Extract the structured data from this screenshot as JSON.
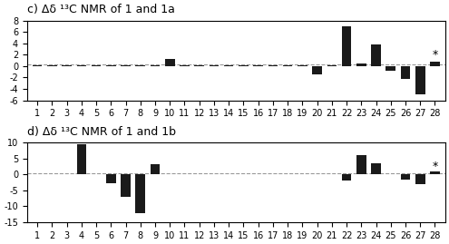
{
  "chart_data": [
    {
      "type": "bar",
      "title": "c) Δδ ¹³C NMR of 1 and 1a",
      "categories": [
        "1",
        "2",
        "3",
        "4",
        "5",
        "6",
        "7",
        "8",
        "9",
        "10",
        "11",
        "12",
        "13",
        "14",
        "15",
        "16",
        "17",
        "18",
        "19",
        "20",
        "21",
        "22",
        "23",
        "24",
        "25",
        "26",
        "27",
        "28"
      ],
      "values": [
        0.2,
        0.2,
        0.2,
        0.2,
        0.2,
        0.2,
        0.2,
        0.2,
        0.2,
        1.3,
        0.2,
        0.2,
        0.2,
        0.2,
        0.2,
        0.2,
        0.2,
        0.2,
        0.2,
        -1.5,
        0.2,
        7.0,
        0.4,
        3.8,
        -0.8,
        -2.3,
        -5.0,
        0.8
      ],
      "color": "#1a1a1a",
      "ylim": [
        -6,
        8
      ],
      "yticks": [
        -6,
        -4,
        -2,
        0,
        2,
        4,
        6,
        8
      ],
      "reference_line": {
        "y": 0.3,
        "color": "#999999",
        "line_style": "dashed"
      },
      "annotations": [
        {
          "text": "*",
          "category": "28",
          "y": 0.9
        }
      ]
    },
    {
      "type": "bar",
      "title": "d) Δδ ¹³C NMR of 1 and 1b",
      "categories": [
        "1",
        "2",
        "3",
        "4",
        "5",
        "6",
        "7",
        "8",
        "9",
        "10",
        "11",
        "12",
        "13",
        "14",
        "15",
        "16",
        "17",
        "18",
        "19",
        "20",
        "21",
        "22",
        "23",
        "24",
        "25",
        "26",
        "27",
        "28"
      ],
      "values": [
        0.2,
        0.2,
        0.2,
        9.5,
        0.2,
        -2.8,
        -7.0,
        -12.0,
        3.2,
        0.2,
        0.2,
        0.2,
        0.2,
        0.2,
        0.2,
        0.2,
        0.2,
        0.2,
        0.2,
        0.2,
        0.2,
        -2.0,
        6.0,
        3.5,
        0.2,
        -1.5,
        -3.0,
        0.8
      ],
      "color": "#1a1a1a",
      "ylim": [
        -15,
        10
      ],
      "yticks": [
        -15,
        -10,
        -5,
        0,
        5,
        10
      ],
      "reference_line": {
        "y": 0.3,
        "color": "#999999",
        "line_style": "dashed"
      },
      "annotations": [
        {
          "text": "*",
          "category": "28",
          "y": 0.5
        }
      ]
    }
  ]
}
